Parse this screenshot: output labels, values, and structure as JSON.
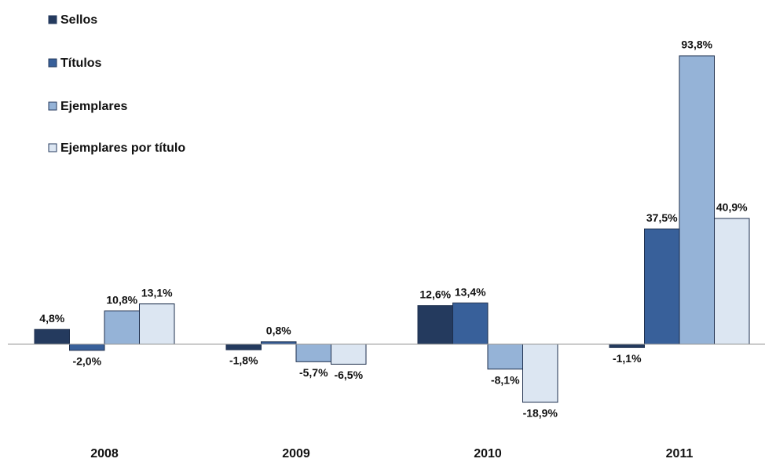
{
  "chart_data": {
    "type": "bar",
    "categories": [
      "2008",
      "2009",
      "2010",
      "2011"
    ],
    "series": [
      {
        "name": "Sellos",
        "color": "#243a5e",
        "values": [
          4.8,
          -1.8,
          12.6,
          -1.1
        ],
        "value_labels": [
          "4,8%",
          "-1,8%",
          "12,6%",
          "-1,1%"
        ]
      },
      {
        "name": "Títulos",
        "color": "#38609a",
        "values": [
          -2.0,
          0.8,
          13.4,
          37.5
        ],
        "value_labels": [
          "-2,0%",
          "0,8%",
          "13,4%",
          "37,5%"
        ]
      },
      {
        "name": "Ejemplares",
        "color": "#95b3d7",
        "values": [
          10.8,
          -5.7,
          -8.1,
          93.8
        ],
        "value_labels": [
          "10,8%",
          "-5,7%",
          "-8,1%",
          "93,8%"
        ]
      },
      {
        "name": "Ejemplares por título",
        "color": "#dce6f2",
        "values": [
          13.1,
          -6.5,
          -18.9,
          40.9
        ],
        "value_labels": [
          "13,1%",
          "-6,5%",
          "-18,9%",
          "40,9%"
        ]
      }
    ]
  }
}
